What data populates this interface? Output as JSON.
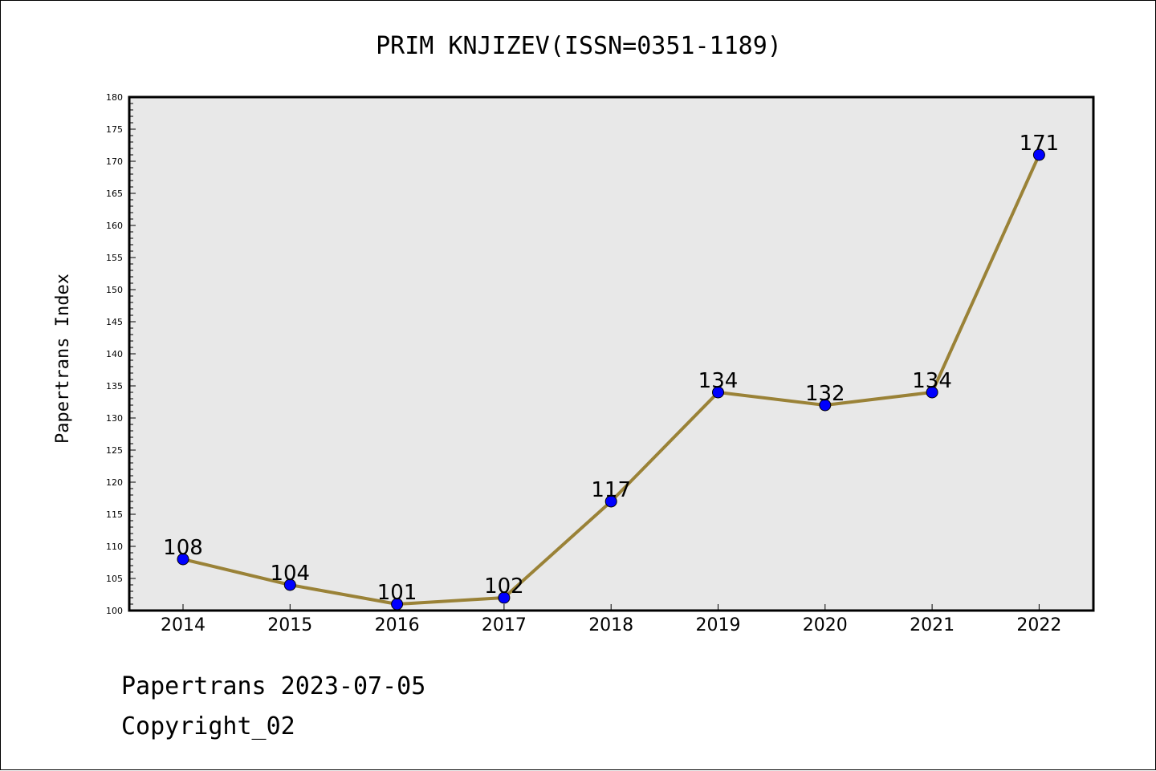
{
  "chart_data": {
    "type": "line",
    "title": "PRIM KNJIZEV(ISSN=0351-1189)",
    "ylabel": "Papertrans Index",
    "xlabel": "",
    "categories": [
      "2014",
      "2015",
      "2016",
      "2017",
      "2018",
      "2019",
      "2020",
      "2021",
      "2022"
    ],
    "series": [
      {
        "values": [
          108,
          104,
          101,
          102,
          117,
          134,
          132,
          134,
          171
        ]
      }
    ],
    "ylim": [
      100,
      180
    ],
    "ytick_step": 5,
    "line_color": "#9a8237",
    "marker_color": "#0000ff",
    "plot_background": "#e8e8e8",
    "grid": false,
    "legend": "none"
  },
  "footer": {
    "line1": "Papertrans 2023-07-05",
    "line2": "Copyright_02"
  }
}
